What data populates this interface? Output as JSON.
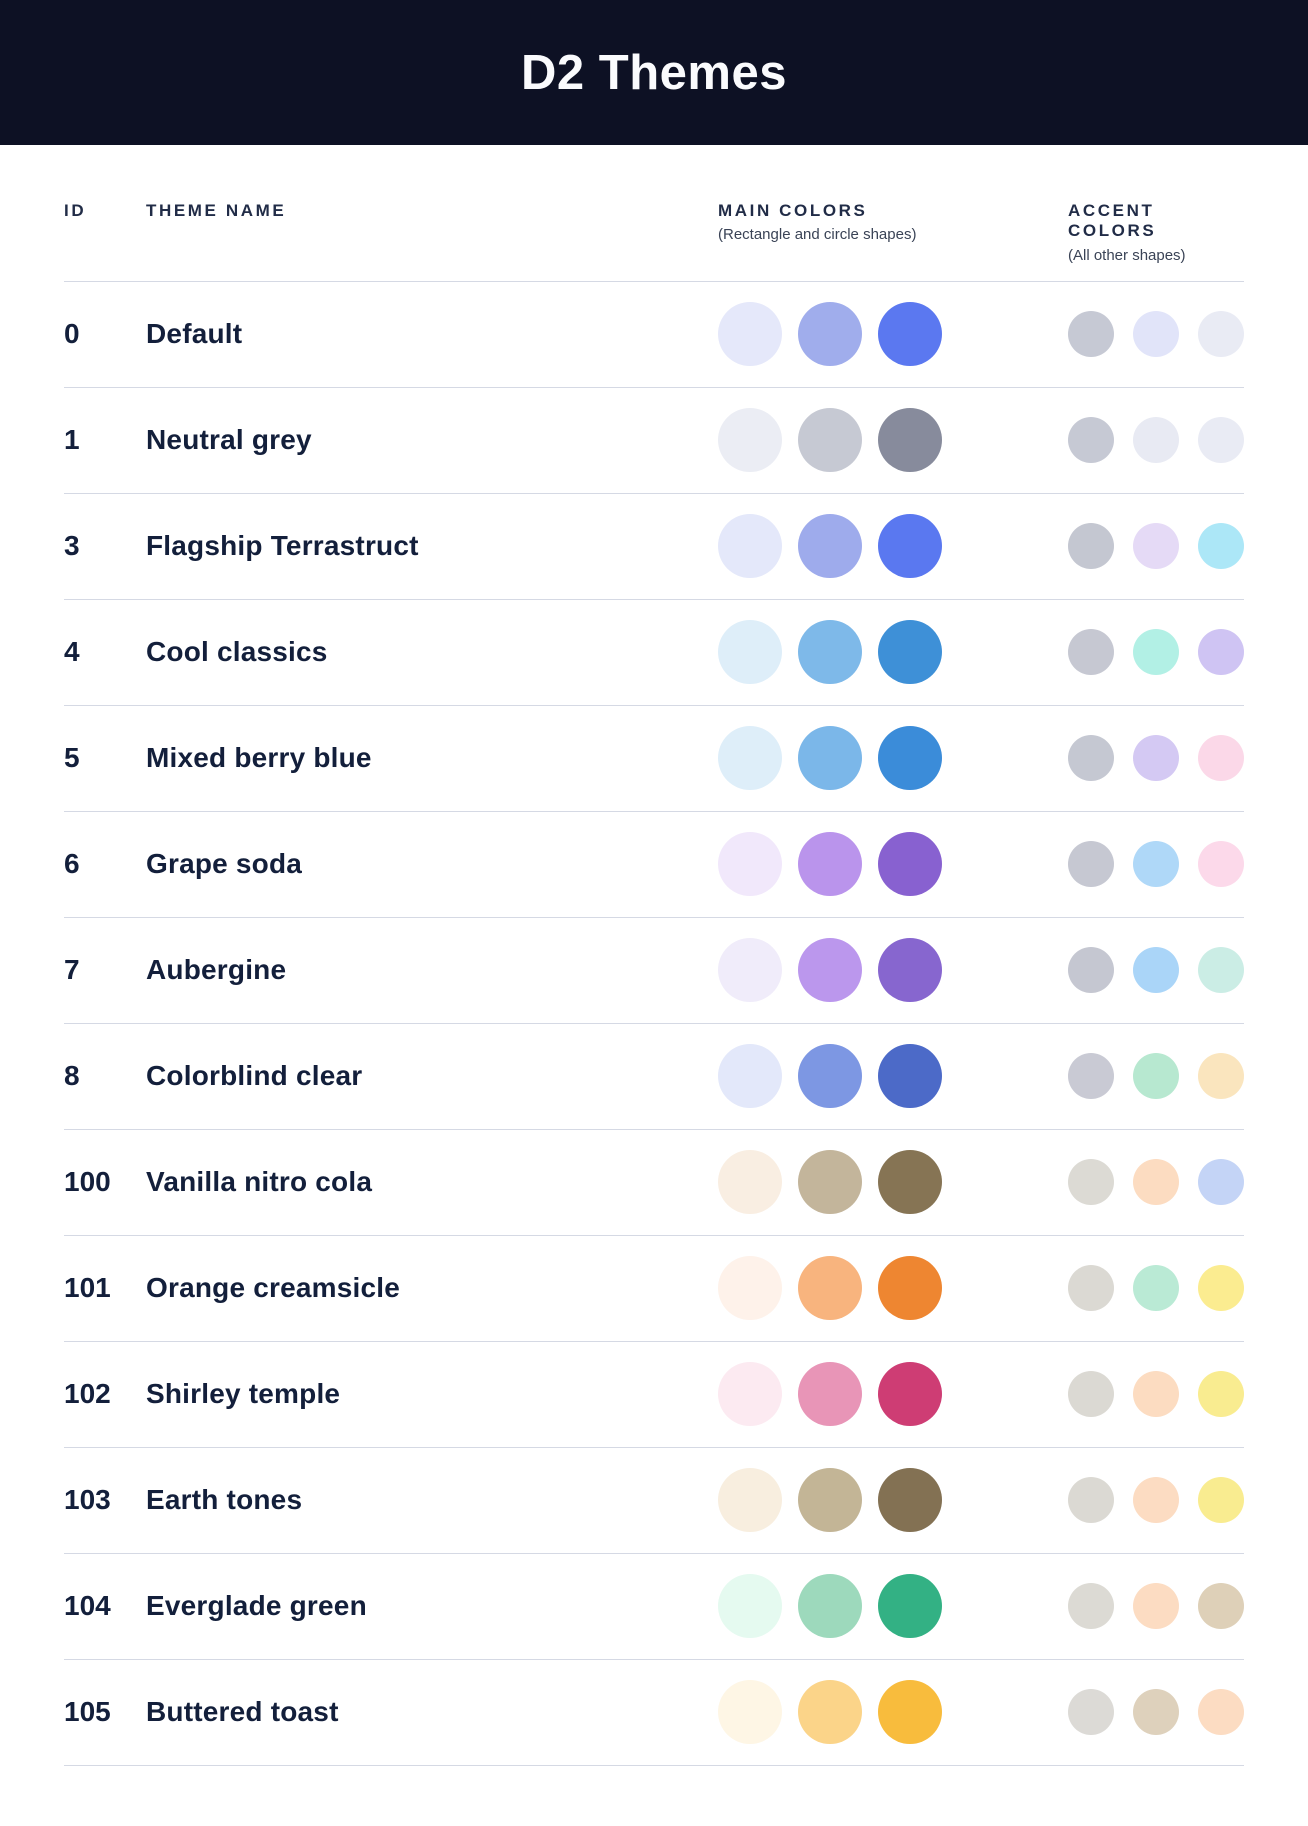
{
  "header": {
    "title": "D2 Themes"
  },
  "table": {
    "columns": {
      "id_label": "ID",
      "theme_name_label": "THEME NAME",
      "main_colors_label": "MAIN COLORS",
      "main_colors_subtitle": "(Rectangle and circle shapes)",
      "accent_colors_label": "ACCENT COLORS",
      "accent_colors_subtitle": "(All other shapes)"
    },
    "rows": [
      {
        "id": "0",
        "name": "Default",
        "main": [
          "#E5E8FA",
          "#A0ADEC",
          "#5B78F0"
        ],
        "accent": [
          "#C6C9D4",
          "#E1E4F9",
          "#E9EBF4"
        ]
      },
      {
        "id": "1",
        "name": "Neutral grey",
        "main": [
          "#EBEDF4",
          "#C6C9D3",
          "#878B9C"
        ],
        "accent": [
          "#C6C9D4",
          "#E8EAF3",
          "#E9EBF4"
        ]
      },
      {
        "id": "3",
        "name": "Flagship Terrastruct",
        "main": [
          "#E4E8FA",
          "#9EABEC",
          "#5A78F0"
        ],
        "accent": [
          "#C4C7D1",
          "#E5DAF6",
          "#ACE7F7"
        ]
      },
      {
        "id": "4",
        "name": "Cool classics",
        "main": [
          "#DEEEF9",
          "#7EB9E9",
          "#3E90D7"
        ],
        "accent": [
          "#C6C8D2",
          "#B2F0E5",
          "#CFC4F3"
        ]
      },
      {
        "id": "5",
        "name": "Mixed berry blue",
        "main": [
          "#DEEEF9",
          "#7BB7E9",
          "#3B8CD9"
        ],
        "accent": [
          "#C5C8D2",
          "#D4C9F3",
          "#FBD8E8"
        ]
      },
      {
        "id": "6",
        "name": "Grape soda",
        "main": [
          "#F1E8FB",
          "#BA94EC",
          "#8861D0"
        ],
        "accent": [
          "#C6C8D2",
          "#AFD8F8",
          "#FCD9EA"
        ]
      },
      {
        "id": "7",
        "name": "Aubergine",
        "main": [
          "#F0ECFA",
          "#BB97ED",
          "#8766CF"
        ],
        "accent": [
          "#C5C7D1",
          "#AAD5F8",
          "#CBEDE5"
        ]
      },
      {
        "id": "8",
        "name": "Colorblind clear",
        "main": [
          "#E3E8FA",
          "#7D97E3",
          "#4C6AC8"
        ],
        "accent": [
          "#C9CAD4",
          "#B7E8D0",
          "#FAE5BE"
        ]
      },
      {
        "id": "100",
        "name": "Vanilla nitro cola",
        "main": [
          "#F9EEE2",
          "#C3B59B",
          "#867454"
        ],
        "accent": [
          "#DCDAD4",
          "#FCDCC1",
          "#C4D4F6"
        ]
      },
      {
        "id": "101",
        "name": "Orange creamsicle",
        "main": [
          "#FEF2EA",
          "#F8B47E",
          "#EE8631"
        ],
        "accent": [
          "#DBD9D3",
          "#BAEAD5",
          "#FBEC90"
        ]
      },
      {
        "id": "102",
        "name": "Shirley temple",
        "main": [
          "#FCEAF1",
          "#E895B7",
          "#CE3D74"
        ],
        "accent": [
          "#DBD9D3",
          "#FCDCC1",
          "#F9EC90"
        ]
      },
      {
        "id": "103",
        "name": "Earth tones",
        "main": [
          "#F8EEDF",
          "#C3B596",
          "#837153"
        ],
        "accent": [
          "#DBD9D3",
          "#FCDCC2",
          "#F9EC90"
        ]
      },
      {
        "id": "104",
        "name": "Everglade green",
        "main": [
          "#E5FAF0",
          "#9DD9BC",
          "#33B184"
        ],
        "accent": [
          "#DCDAD4",
          "#FCDCC2",
          "#DED0B8"
        ]
      },
      {
        "id": "105",
        "name": "Buttered toast",
        "main": [
          "#FEF6E5",
          "#FBD489",
          "#F8BC3D"
        ],
        "accent": [
          "#DCDAD6",
          "#DED1BC",
          "#FCDCC2"
        ]
      }
    ]
  },
  "colors": {
    "header_bg": "#0D1124",
    "title_text": "#FAFBFD",
    "heading_text": "#212C47",
    "subtitle_text": "#3A4356",
    "body_text": "#131F3B",
    "divider": "#D5D9E4",
    "page_bg": "#FFFFFF"
  }
}
